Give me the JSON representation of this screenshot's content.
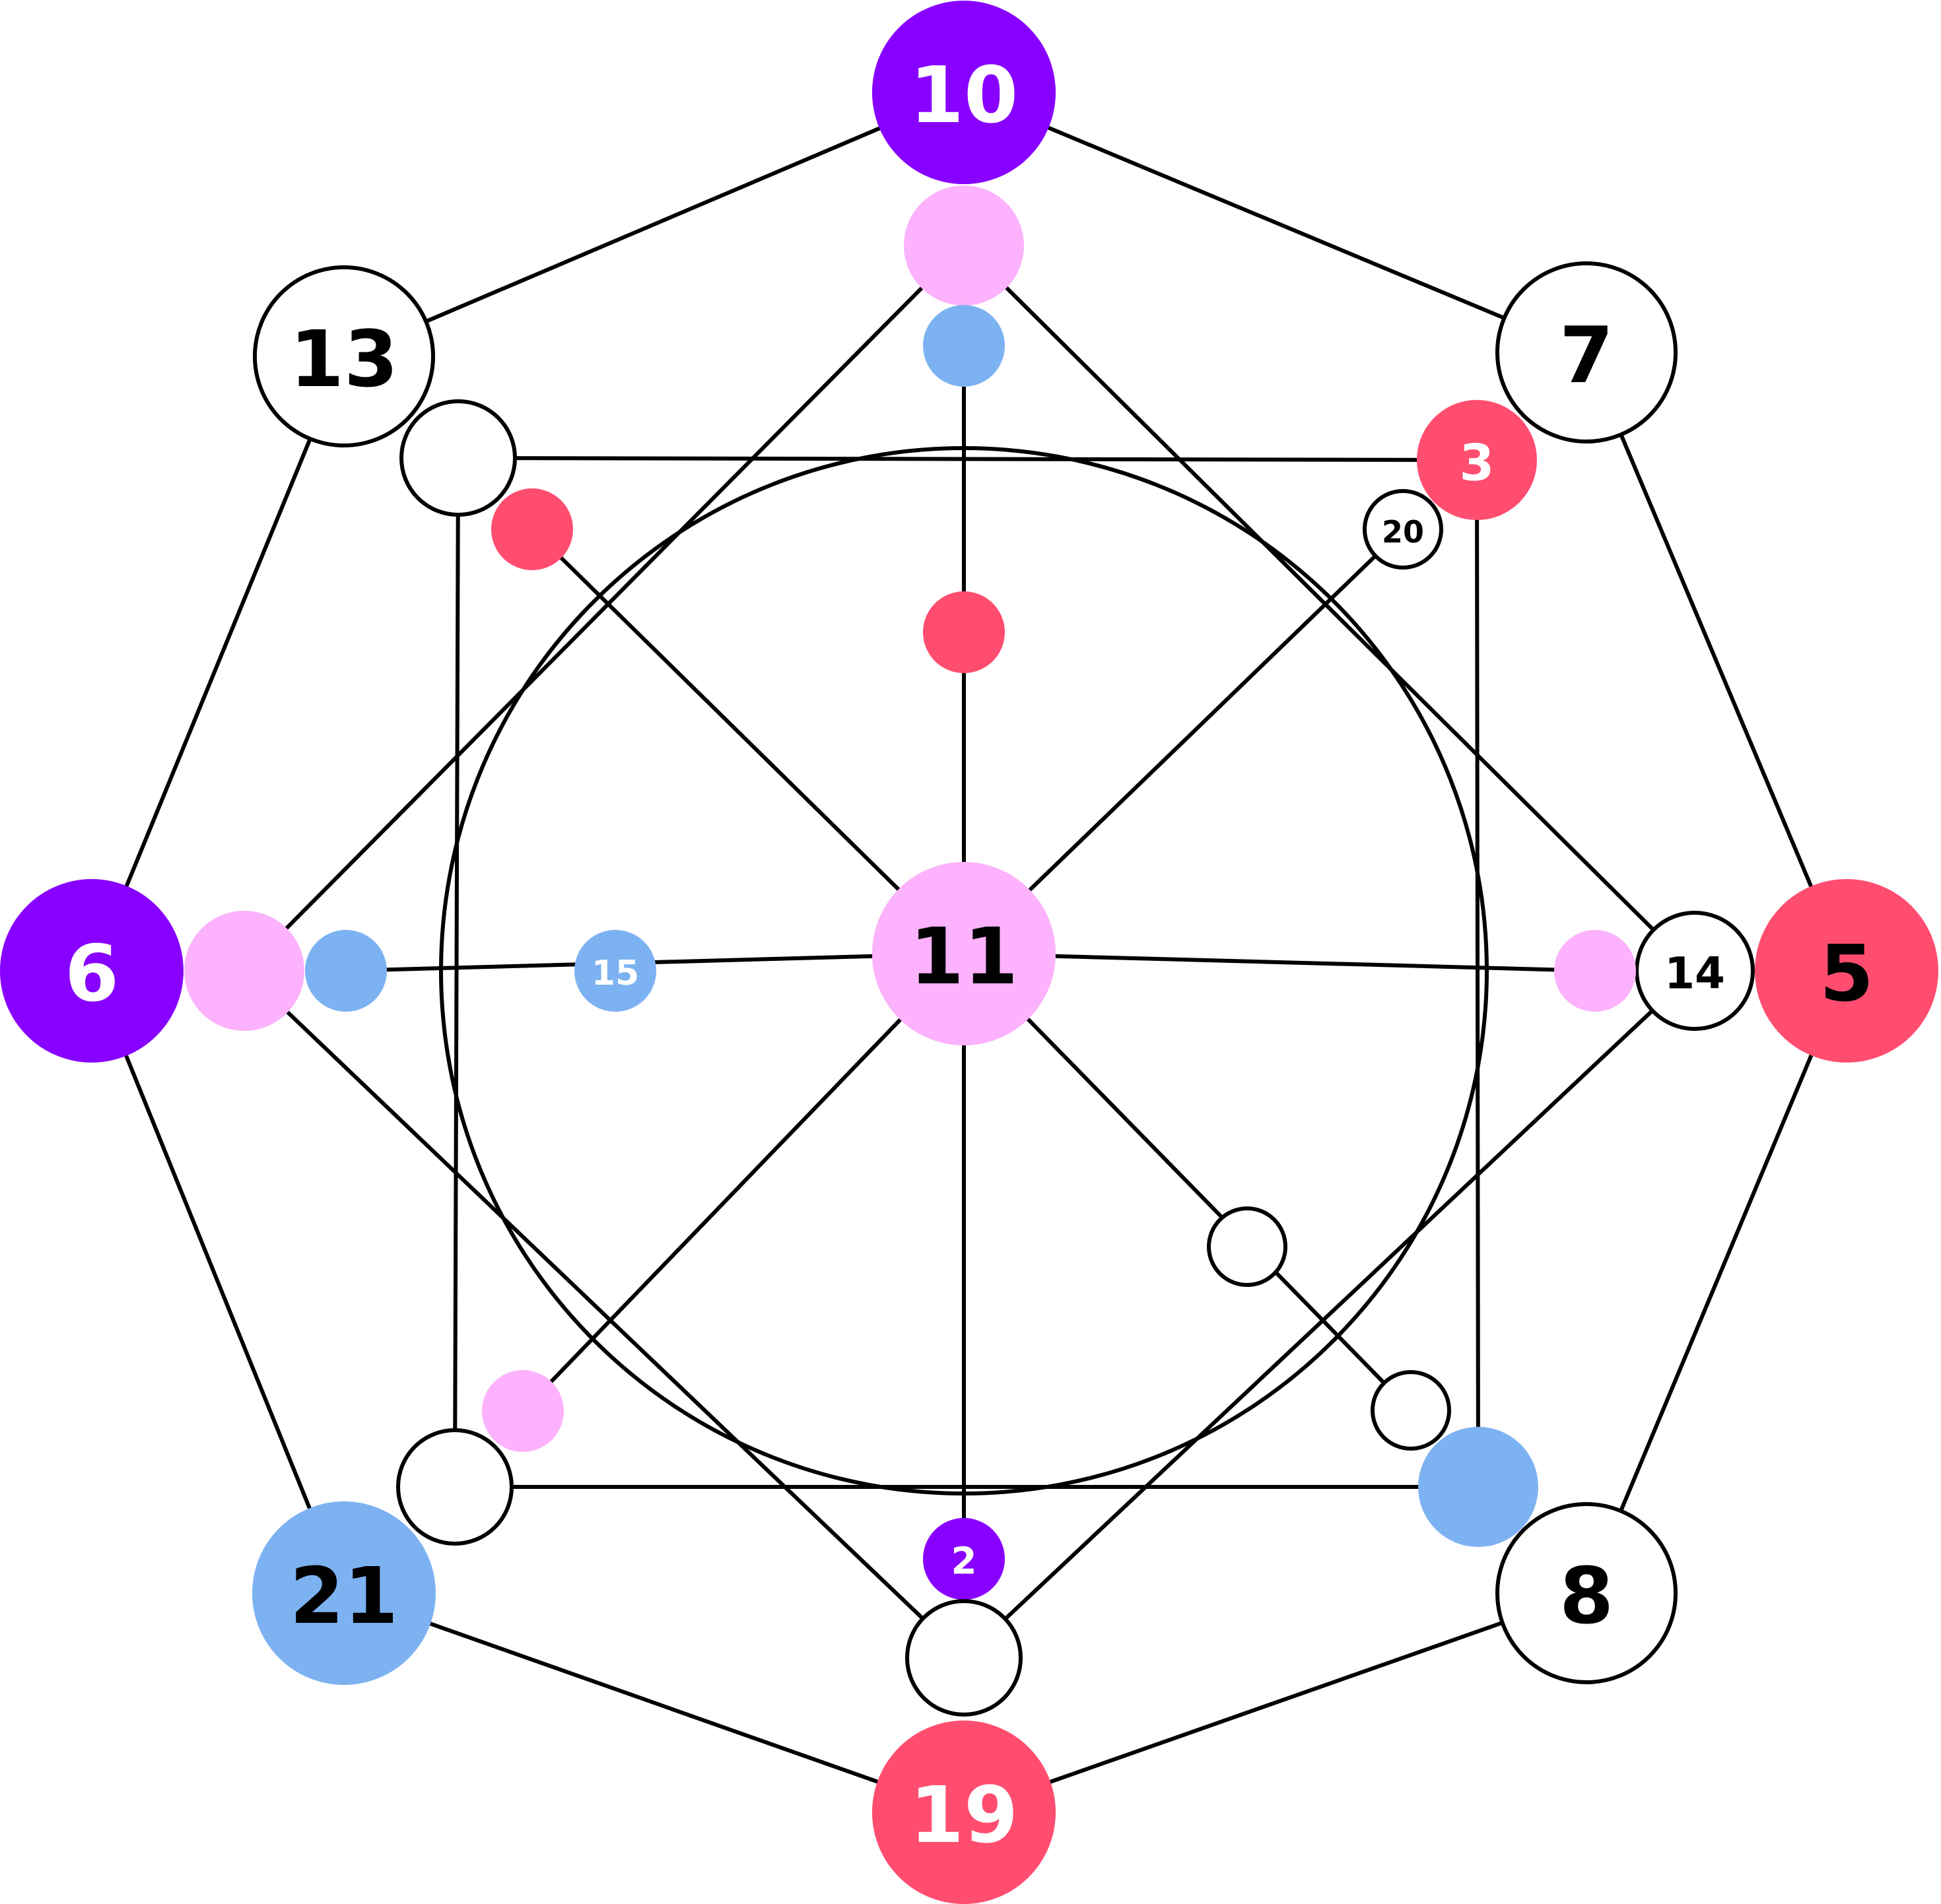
{
  "colors": {
    "purple": "#8800ff",
    "red": "#ff4d70",
    "pink": "#fcb2fc",
    "blue": "#7db2f2",
    "white": "#ffffff",
    "black": "#000000"
  },
  "nodes": [
    {
      "id": "n10",
      "label": "10",
      "fill": "purple",
      "text_color": "white"
    },
    {
      "id": "n7",
      "label": "7",
      "fill": "white",
      "text_color": "black"
    },
    {
      "id": "n5",
      "label": "5",
      "fill": "red",
      "text_color": "black"
    },
    {
      "id": "n8",
      "label": "8",
      "fill": "white",
      "text_color": "black"
    },
    {
      "id": "n19",
      "label": "19",
      "fill": "red",
      "text_color": "white"
    },
    {
      "id": "n21",
      "label": "21",
      "fill": "blue",
      "text_color": "black"
    },
    {
      "id": "n6",
      "label": "6",
      "fill": "purple",
      "text_color": "white"
    },
    {
      "id": "n13",
      "label": "13",
      "fill": "white",
      "text_color": "black"
    },
    {
      "id": "n11",
      "label": "11",
      "fill": "pink",
      "text_color": "black"
    },
    {
      "id": "n3",
      "label": "3",
      "fill": "red",
      "text_color": "white"
    },
    {
      "id": "n20",
      "label": "20",
      "fill": "white",
      "text_color": "black"
    },
    {
      "id": "n14",
      "label": "14",
      "fill": "white",
      "text_color": "black"
    },
    {
      "id": "n15",
      "label": "15",
      "fill": "blue",
      "text_color": "white"
    },
    {
      "id": "n2",
      "label": "2",
      "fill": "purple",
      "text_color": "white"
    },
    {
      "id": "top-pink",
      "label": "",
      "fill": "pink"
    },
    {
      "id": "top-blue",
      "label": "",
      "fill": "blue"
    },
    {
      "id": "top-inner-red",
      "label": "",
      "fill": "red"
    },
    {
      "id": "left-pink",
      "label": "",
      "fill": "pink"
    },
    {
      "id": "left-blue",
      "label": "",
      "fill": "blue"
    },
    {
      "id": "right-pink",
      "label": "",
      "fill": "pink"
    },
    {
      "id": "upper-left-red",
      "label": "",
      "fill": "red"
    },
    {
      "id": "square-tl",
      "label": "",
      "fill": "white"
    },
    {
      "id": "square-bl",
      "label": "",
      "fill": "white"
    },
    {
      "id": "square-br",
      "label": "",
      "fill": "blue"
    },
    {
      "id": "bottom-white",
      "label": "",
      "fill": "white"
    },
    {
      "id": "lower-left-pink",
      "label": "",
      "fill": "pink"
    },
    {
      "id": "lower-right-white-1",
      "label": "",
      "fill": "white"
    },
    {
      "id": "lower-right-white-2",
      "label": "",
      "fill": "white"
    }
  ],
  "edges": [
    [
      "n10",
      "n7"
    ],
    [
      "n7",
      "n5"
    ],
    [
      "n5",
      "n8"
    ],
    [
      "n8",
      "n19"
    ],
    [
      "n19",
      "n21"
    ],
    [
      "n21",
      "n6"
    ],
    [
      "n6",
      "n13"
    ],
    [
      "n13",
      "n10"
    ],
    [
      "top-pink",
      "left-pink"
    ],
    [
      "left-pink",
      "bottom-white"
    ],
    [
      "bottom-white",
      "n14"
    ],
    [
      "n14",
      "top-pink"
    ],
    [
      "square-tl",
      "n3"
    ],
    [
      "n3",
      "square-br"
    ],
    [
      "square-br",
      "square-bl"
    ],
    [
      "square-bl",
      "square-tl"
    ],
    [
      "n11",
      "top-blue"
    ],
    [
      "n11",
      "n2"
    ],
    [
      "n11",
      "left-blue"
    ],
    [
      "n11",
      "right-pink"
    ],
    [
      "n11",
      "upper-left-red"
    ],
    [
      "n11",
      "n20"
    ],
    [
      "n11",
      "lower-left-pink"
    ],
    [
      "n11",
      "lower-right-white-2"
    ]
  ],
  "ring": {
    "center": "n11"
  }
}
